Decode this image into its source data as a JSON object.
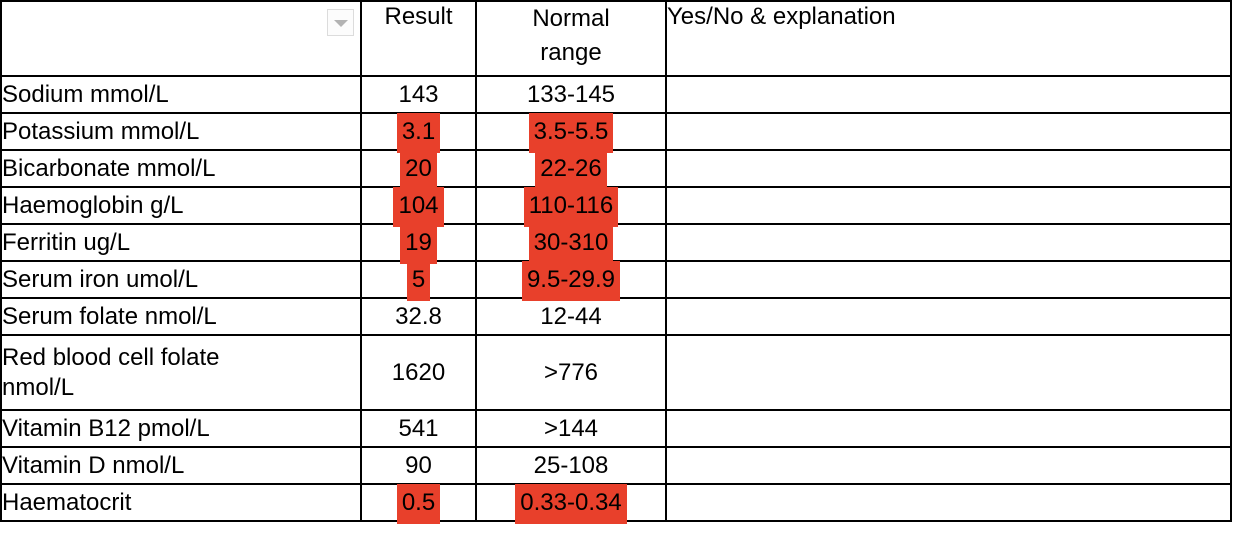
{
  "table": {
    "headers": {
      "name": "",
      "result": "Result",
      "normal_range": "Normal range",
      "explanation": "Yes/No & explanation"
    },
    "filter_icon": "chevron-down-icon",
    "highlight_color": "#e8402b",
    "border_color": "#000000",
    "rows": [
      {
        "name": "Sodium mmol/L",
        "result": "143",
        "range": "133-145",
        "result_highlighted": false,
        "range_highlighted": false,
        "explanation": ""
      },
      {
        "name": "Potassium mmol/L",
        "result": "3.1",
        "range": "3.5-5.5",
        "result_highlighted": true,
        "range_highlighted": true,
        "explanation": ""
      },
      {
        "name": "Bicarbonate mmol/L",
        "result": "20",
        "range": "22-26",
        "result_highlighted": true,
        "range_highlighted": true,
        "explanation": ""
      },
      {
        "name": "Haemoglobin g/L",
        "result": "104",
        "range": "110-116",
        "result_highlighted": true,
        "range_highlighted": true,
        "explanation": ""
      },
      {
        "name": "Ferritin ug/L",
        "result": "19",
        "range": "30-310",
        "result_highlighted": true,
        "range_highlighted": true,
        "explanation": ""
      },
      {
        "name": "Serum iron umol/L",
        "result": "5",
        "range": "9.5-29.9",
        "result_highlighted": true,
        "range_highlighted": true,
        "explanation": ""
      },
      {
        "name": "Serum folate nmol/L",
        "result": "32.8",
        "range": "12-44",
        "result_highlighted": false,
        "range_highlighted": false,
        "explanation": ""
      },
      {
        "name": "Red blood cell folate\nnmol/L",
        "result": "1620",
        "range": ">776",
        "result_highlighted": false,
        "range_highlighted": false,
        "explanation": "",
        "tall": true
      },
      {
        "name": "Vitamin B12 pmol/L",
        "result": "541",
        "range": ">144",
        "result_highlighted": false,
        "range_highlighted": false,
        "explanation": ""
      },
      {
        "name": "Vitamin D nmol/L",
        "result": "90",
        "range": "25-108",
        "result_highlighted": false,
        "range_highlighted": false,
        "explanation": ""
      },
      {
        "name": "Haematocrit",
        "result": "0.5",
        "range": "0.33-0.34",
        "result_highlighted": true,
        "range_highlighted": true,
        "explanation": ""
      }
    ]
  }
}
